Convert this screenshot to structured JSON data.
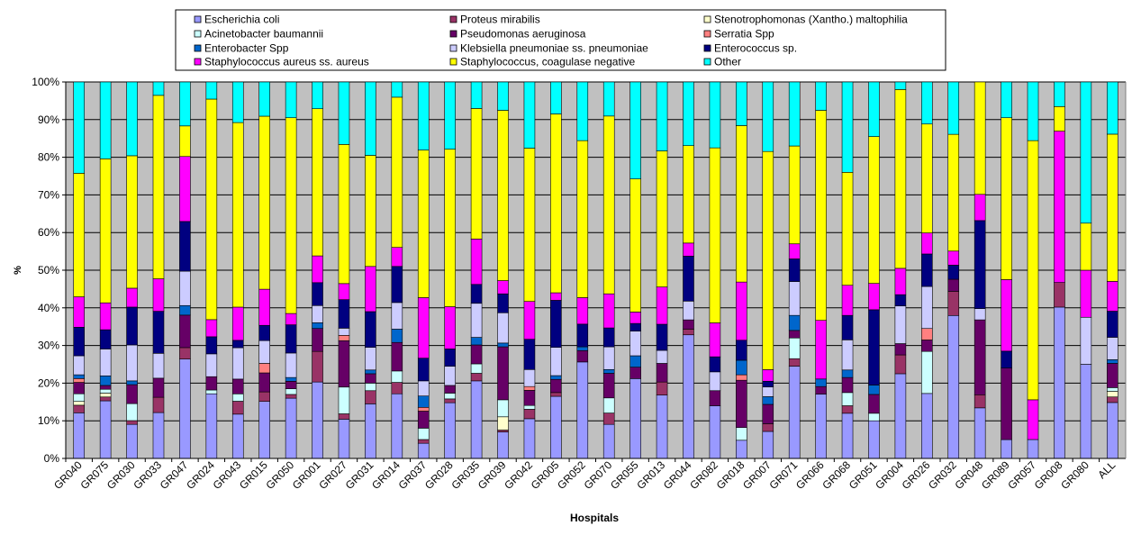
{
  "chart_data": {
    "type": "bar",
    "stacking": "percent",
    "title": "",
    "xlabel": "Hospitals",
    "ylabel": "%",
    "ylim": [
      0,
      100
    ],
    "yticks": [
      "0%",
      "10%",
      "20%",
      "30%",
      "40%",
      "50%",
      "60%",
      "70%",
      "80%",
      "90%",
      "100%"
    ],
    "grid": true,
    "plot_background": "#c0c0c0",
    "legend_position": "top",
    "categories": [
      "GR040",
      "GR075",
      "GR030",
      "GR033",
      "GR047",
      "GR024",
      "GR043",
      "GR015",
      "GR050",
      "GR001",
      "GR027",
      "GR031",
      "GR014",
      "GR037",
      "GR028",
      "GR035",
      "GR039",
      "GR042",
      "GR005",
      "GR052",
      "GR070",
      "GR055",
      "GR013",
      "GR044",
      "GR082",
      "GR018",
      "GR007",
      "GR071",
      "GR066",
      "GR068",
      "GR051",
      "GR004",
      "GR026",
      "GR032",
      "GR048",
      "GR089",
      "GR057",
      "GR008",
      "GR080",
      "ALL"
    ],
    "series": [
      {
        "name": "Escherichia coli",
        "color": "#9999ff",
        "values": [
          12,
          15,
          9,
          12,
          26,
          17,
          12,
          15,
          16,
          20,
          11,
          14.5,
          17,
          4,
          14.5,
          20.5,
          7,
          10.5,
          16.5,
          25.5,
          9,
          21,
          17,
          33,
          14,
          5,
          7,
          24.5,
          17,
          12,
          10,
          22.5,
          17,
          35.5,
          13.5,
          5,
          5,
          40,
          25,
          15
        ]
      },
      {
        "name": "Proteus mirabilis",
        "color": "#993366",
        "values": [
          2,
          1,
          1,
          4,
          3,
          0,
          3.5,
          2.5,
          1,
          8,
          1.5,
          3.5,
          3,
          1,
          1,
          2,
          0.5,
          2.5,
          1,
          0,
          3,
          0,
          3.5,
          1.5,
          0,
          0,
          2,
          2,
          0,
          2,
          0,
          5,
          0,
          6,
          3.5,
          0,
          0,
          6.5,
          0,
          1.5
        ]
      },
      {
        "name": "Stenotrophomonas (Xantho.) maltophilia",
        "color": "#ffffcc",
        "values": [
          1,
          1,
          0,
          0,
          0,
          0,
          0,
          0,
          0,
          0,
          0,
          0,
          0,
          0,
          0,
          0,
          3.5,
          0,
          0,
          0,
          0,
          0,
          0,
          0,
          0,
          0,
          0,
          0,
          0,
          0,
          0,
          0,
          0,
          0,
          0,
          0,
          0,
          0,
          0,
          1.5
        ]
      },
      {
        "name": "Acinetobacter baumannii",
        "color": "#ccffff",
        "values": [
          2,
          1,
          4.5,
          0,
          0,
          1,
          2,
          0,
          1.5,
          0,
          7.5,
          2,
          3,
          3,
          1.5,
          2.5,
          4.5,
          1,
          0,
          0,
          4,
          0,
          0,
          0,
          0,
          3.5,
          0,
          5.5,
          0,
          3.5,
          2,
          0,
          11,
          0,
          0,
          0,
          0,
          0,
          0,
          1
        ]
      },
      {
        "name": "Pseudomonas aeruginosa",
        "color": "#660066",
        "values": [
          3,
          1,
          5,
          5,
          8.5,
          3.5,
          4,
          5,
          2,
          6,
          13,
          2.5,
          7.5,
          4.5,
          2,
          5,
          14,
          4,
          3.5,
          3,
          6.5,
          3,
          5,
          2.5,
          4,
          13,
          5,
          2,
          2,
          4,
          5,
          3,
          3,
          3,
          20,
          19,
          0,
          0,
          0,
          6.5
        ]
      },
      {
        "name": "Serratia Spp",
        "color": "#ff8080",
        "values": [
          1,
          0,
          0,
          0,
          0,
          0,
          0,
          2.5,
          0,
          0,
          1.5,
          0,
          0,
          1,
          0,
          0,
          0,
          1,
          0,
          0,
          0,
          0,
          0,
          0,
          0,
          1.5,
          0,
          0,
          0,
          0,
          0,
          0,
          3,
          0,
          0,
          0,
          0,
          0,
          0,
          0
        ]
      },
      {
        "name": "Enterobacter Spp",
        "color": "#0066cc",
        "values": [
          1,
          2.5,
          1,
          0,
          2.5,
          0,
          0,
          0,
          1,
          1.5,
          0,
          1,
          3.5,
          3,
          0,
          2,
          1,
          0,
          1,
          1,
          1,
          3,
          0,
          0,
          0,
          4,
          2,
          4,
          2,
          2,
          2.5,
          0,
          0,
          0,
          0,
          0,
          0,
          0,
          0,
          1
        ]
      },
      {
        "name": "Klebsiella pneumoniae ss. pneumoniae",
        "color": "#ccccff",
        "values": [
          5,
          7,
          9.5,
          6.5,
          9,
          6,
          8.5,
          6,
          6.5,
          4.5,
          2,
          6,
          7,
          4,
          5,
          9,
          8,
          4.5,
          7.5,
          0,
          6,
          6.5,
          3.5,
          5,
          5,
          0,
          2.5,
          9,
          0,
          8,
          0,
          10,
          11,
          0,
          3,
          0,
          0,
          0,
          12.5,
          6
        ]
      },
      {
        "name": "Enterococcus sp.",
        "color": "#000080",
        "values": [
          7.5,
          5,
          10,
          11,
          13,
          4.5,
          2,
          4,
          7.5,
          6,
          8,
          9.5,
          9.5,
          6,
          4.5,
          5,
          5,
          8,
          12.5,
          6,
          5,
          2,
          7,
          12,
          4,
          5.5,
          1.5,
          6,
          0,
          6.5,
          20,
          3,
          8.5,
          3.5,
          23.5,
          4.5,
          0,
          0,
          0,
          7
        ]
      },
      {
        "name": "Staphylococcus aureus ss. aureus",
        "color": "#ff00ff",
        "values": [
          8,
          7,
          5,
          8.5,
          17,
          4.5,
          9,
          9.5,
          3,
          7,
          4.5,
          12,
          5,
          16,
          11,
          12,
          3.5,
          10,
          2,
          7,
          9,
          3,
          10,
          3.5,
          9,
          16,
          3,
          4,
          15.5,
          8,
          7,
          7,
          5.5,
          3.5,
          7,
          19,
          10.5,
          40,
          12.5,
          8
        ]
      },
      {
        "name": "Staphylococcus, coagulase negative",
        "color": "#ffff00",
        "values": [
          32.5,
          37.5,
          35,
          48,
          8,
          58,
          50,
          45.5,
          52,
          38.5,
          39,
          29.5,
          39.5,
          39,
          41,
          34.5,
          45,
          40.5,
          47.5,
          41.5,
          47,
          35,
          36.5,
          26,
          46.5,
          43,
          56.5,
          26,
          55.5,
          30,
          39,
          47.5,
          28.5,
          29,
          30,
          43,
          68.5,
          6.5,
          12.5,
          39.5
        ]
      },
      {
        "name": "Other",
        "color": "#00ffff",
        "values": [
          24,
          20,
          19.5,
          3.5,
          11.5,
          4.5,
          11,
          9,
          9.5,
          7,
          17.5,
          19.5,
          4,
          18,
          17.5,
          7,
          7.5,
          17.5,
          8.5,
          15.5,
          9,
          25.5,
          18.5,
          17,
          17.5,
          12,
          18,
          17,
          7.5,
          24,
          14.5,
          2,
          11,
          13,
          0,
          9.5,
          15.5,
          6.5,
          37.5,
          14
        ]
      }
    ]
  }
}
